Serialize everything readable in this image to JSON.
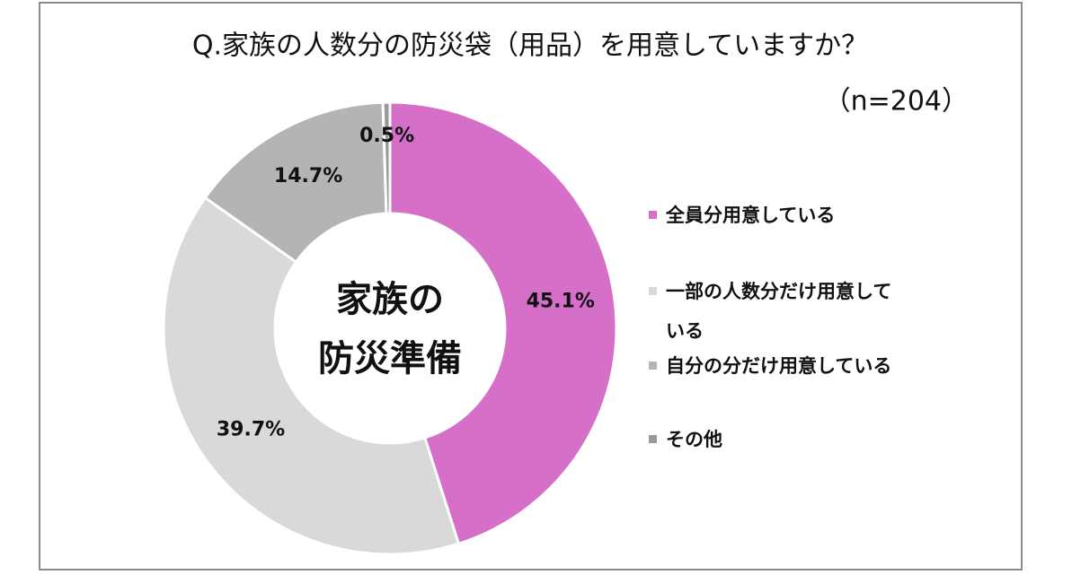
{
  "chart_data": {
    "type": "donut",
    "title": "Q.家族の人数分の防災袋（用品）を用意していますか？",
    "subtitle": "（n=204）",
    "center_label": [
      "家族の",
      "防災準備"
    ],
    "categories": [
      "全員分用意している",
      "一部の人数分だけ用意している",
      "自分の分だけ用意している",
      "その他"
    ],
    "values": [
      45.1,
      39.7,
      14.7,
      0.5
    ],
    "value_labels": [
      "45.1%",
      "39.7%",
      "14.7%",
      "0.5%"
    ],
    "colors": [
      "#d56fc8",
      "#d9d9d9",
      "#b4b4b4",
      "#9a9a9a"
    ],
    "legend": "right"
  }
}
